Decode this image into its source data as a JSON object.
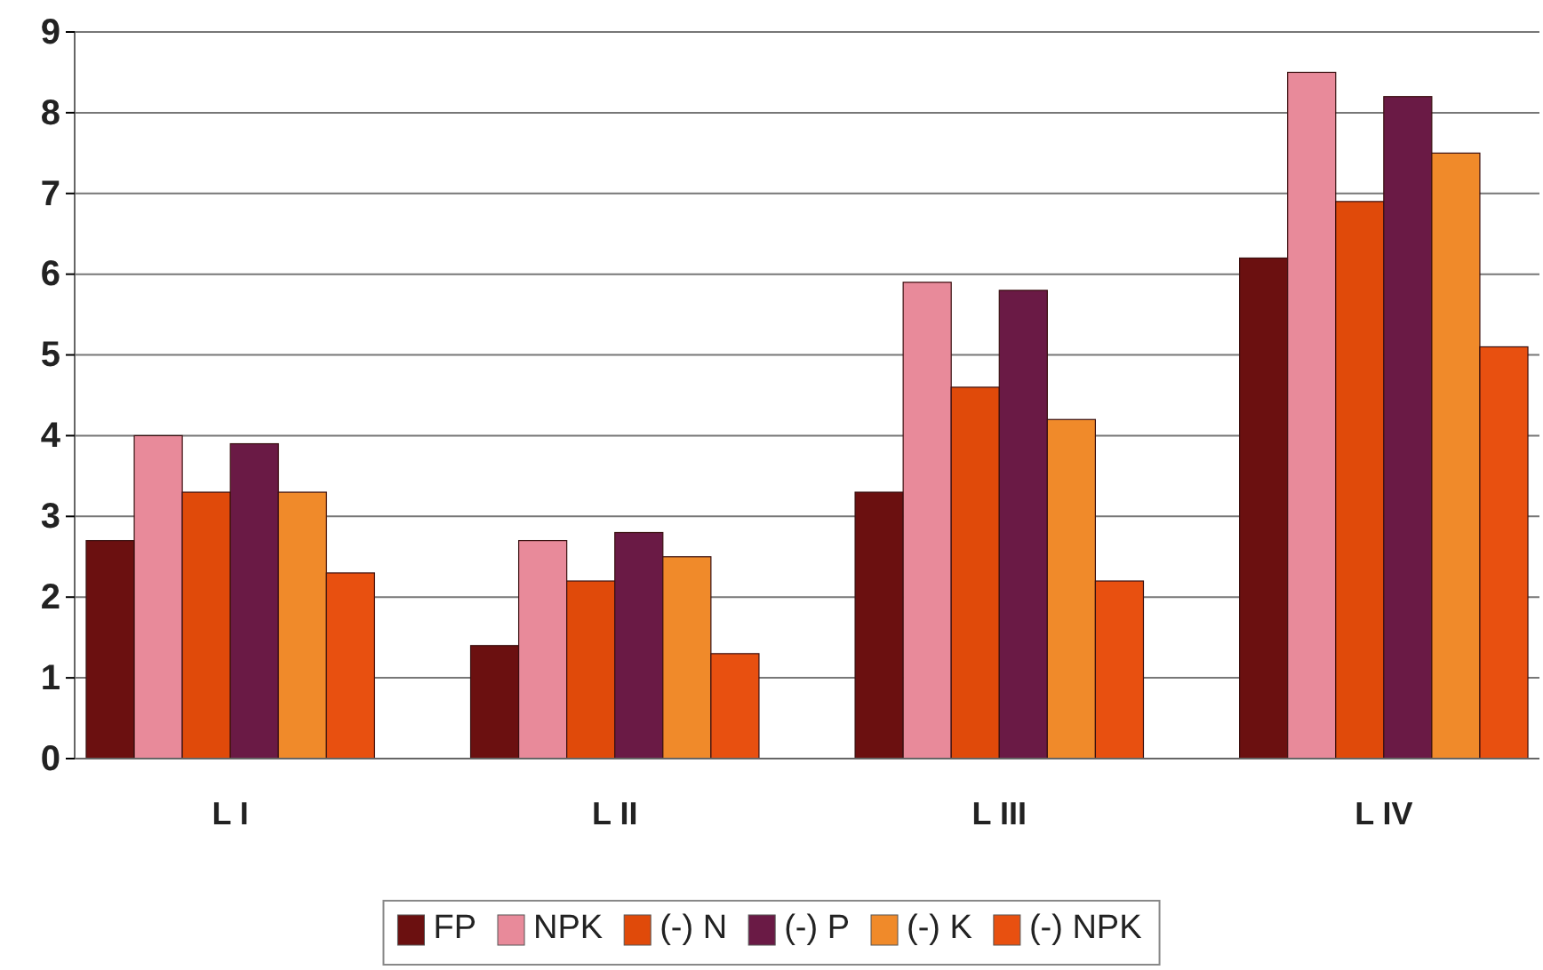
{
  "chart_data": {
    "type": "bar",
    "categories": [
      "L I",
      "L II",
      "L III",
      "L IV"
    ],
    "series": [
      {
        "name": "FP",
        "color": "#6b1010",
        "values": [
          2.7,
          1.4,
          3.3,
          6.2
        ]
      },
      {
        "name": "NPK",
        "color": "#e88a9a",
        "values": [
          4.0,
          2.7,
          5.9,
          8.5
        ]
      },
      {
        "name": "(-) N",
        "color": "#e04a0a",
        "values": [
          3.3,
          2.2,
          4.6,
          6.9
        ]
      },
      {
        "name": "(-) P",
        "color": "#6a1a45",
        "values": [
          3.9,
          2.8,
          5.8,
          8.2
        ]
      },
      {
        "name": "(-) K",
        "color": "#f08a2a",
        "values": [
          3.3,
          2.5,
          4.2,
          7.5
        ]
      },
      {
        "name": "(-) NPK",
        "color": "#e85010",
        "values": [
          2.3,
          1.3,
          2.2,
          5.1
        ]
      }
    ],
    "ylim": [
      0,
      9
    ],
    "yticks": [
      0,
      1,
      2,
      3,
      4,
      5,
      6,
      7,
      8,
      9
    ],
    "grid": "y",
    "legend": "bottom"
  }
}
